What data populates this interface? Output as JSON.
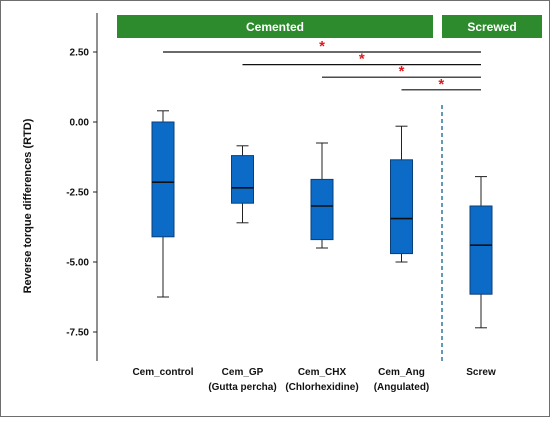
{
  "chart_data": {
    "type": "box",
    "title": "",
    "ylabel": "Reverse torque differences (RTD)",
    "xlabel": "",
    "ylim": [
      -8.5,
      3.5
    ],
    "yticks": [
      2.5,
      0.0,
      -2.5,
      -5.0,
      -7.5
    ],
    "ytick_labels": [
      "2.50",
      "0.00",
      "-2.50",
      "-5.00",
      "-7.50"
    ],
    "grid": false,
    "box_color": "#0b6bc7",
    "group_color": "#2d8a2d",
    "star_color": "#e0191d",
    "groups": [
      {
        "label": "Cemented",
        "from": 0,
        "to": 3
      },
      {
        "label": "Screwed",
        "from": 4,
        "to": 4
      }
    ],
    "categories": [
      {
        "line1": "Cem_control",
        "line2": "",
        "min": -6.25,
        "q1": -4.1,
        "median": -2.15,
        "q3": 0.0,
        "max": 0.4
      },
      {
        "line1": "Cem_GP",
        "line2": "(Gutta percha)",
        "min": -3.6,
        "q1": -2.9,
        "median": -2.35,
        "q3": -1.2,
        "max": -0.85
      },
      {
        "line1": "Cem_CHX",
        "line2": "(Chlorhexidine)",
        "min": -4.5,
        "q1": -4.2,
        "median": -3.0,
        "q3": -2.05,
        "max": -0.75
      },
      {
        "line1": "Cem_Ang",
        "line2": "(Angulated)",
        "min": -5.0,
        "q1": -4.7,
        "median": -3.45,
        "q3": -1.35,
        "max": -0.15
      },
      {
        "line1": "Screw",
        "line2": "",
        "min": -7.35,
        "q1": -6.15,
        "median": -4.4,
        "q3": -3.0,
        "max": -1.95
      }
    ],
    "significance": [
      {
        "from": 0,
        "to": 4,
        "y": 2.5,
        "mark": "*"
      },
      {
        "from": 1,
        "to": 4,
        "y": 2.05,
        "mark": "*"
      },
      {
        "from": 2,
        "to": 4,
        "y": 1.6,
        "mark": "*"
      },
      {
        "from": 3,
        "to": 4,
        "y": 1.15,
        "mark": "*"
      }
    ]
  }
}
